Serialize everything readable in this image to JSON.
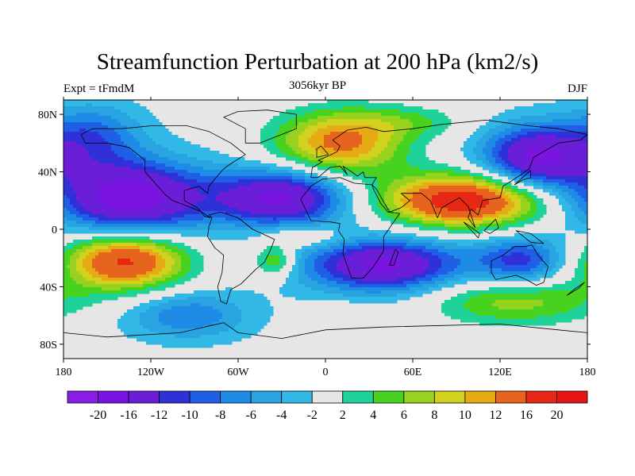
{
  "title": "Streamfunction Perturbation at 200 hPa (km2/s)",
  "subtitle_left": "Expt = tFmdM",
  "subtitle_center": "3056kyr BP",
  "subtitle_right": "DJF",
  "map": {
    "lon_range": [
      -180,
      180
    ],
    "lat_range": [
      -90,
      90
    ],
    "x_ticks": [
      {
        "value": -180,
        "label": "180"
      },
      {
        "value": -120,
        "label": "120W"
      },
      {
        "value": -60,
        "label": "60W"
      },
      {
        "value": 0,
        "label": "0"
      },
      {
        "value": 60,
        "label": "60E"
      },
      {
        "value": 120,
        "label": "120E"
      },
      {
        "value": 180,
        "label": "180"
      }
    ],
    "y_ticks": [
      {
        "value": 80,
        "label": "80N"
      },
      {
        "value": 40,
        "label": "40N"
      },
      {
        "value": 0,
        "label": "0"
      },
      {
        "value": -40,
        "label": "40S"
      },
      {
        "value": -80,
        "label": "80S"
      }
    ],
    "background_color": "#e6e6e6",
    "anomalies": [
      {
        "lon": -135,
        "lat": 22,
        "amp": -18,
        "sx": 38,
        "sy": 18
      },
      {
        "lon": -30,
        "lat": 22,
        "amp": -16,
        "sx": 32,
        "sy": 14
      },
      {
        "lon": 145,
        "lat": 50,
        "amp": -16,
        "sx": 26,
        "sy": 16
      },
      {
        "lon": 40,
        "lat": -25,
        "amp": -16,
        "sx": 38,
        "sy": 13
      },
      {
        "lon": 135,
        "lat": -22,
        "amp": -10,
        "sx": 22,
        "sy": 12
      },
      {
        "lon": 10,
        "lat": 60,
        "amp": 14,
        "sx": 32,
        "sy": 16
      },
      {
        "lon": 95,
        "lat": 20,
        "amp": 20,
        "sx": 40,
        "sy": 13
      },
      {
        "lon": -138,
        "lat": -22,
        "amp": 18,
        "sx": 30,
        "sy": 14
      },
      {
        "lon": -35,
        "lat": -22,
        "amp": 8,
        "sx": 10,
        "sy": 8
      },
      {
        "lon": 130,
        "lat": -50,
        "amp": 8,
        "sx": 42,
        "sy": 12
      },
      {
        "lon": -160,
        "lat": 65,
        "amp": -8,
        "sx": 24,
        "sy": 16
      },
      {
        "lon": -95,
        "lat": -60,
        "amp": -7,
        "sx": 30,
        "sy": 12
      },
      {
        "lon": -15,
        "lat": -5,
        "amp": 5,
        "sx": 22,
        "sy": 6
      },
      {
        "lon": 60,
        "lat": 75,
        "amp": 4,
        "sx": 28,
        "sy": 8
      },
      {
        "lon": 10,
        "lat": -60,
        "amp": 3,
        "sx": 12,
        "sy": 6
      },
      {
        "lon": 0,
        "lat": 0,
        "amp": -1.0,
        "sx": 300,
        "sy": 120
      }
    ]
  },
  "colorbar": {
    "levels": [
      -20,
      -16,
      -12,
      -10,
      -8,
      -6,
      -4,
      -2,
      2,
      4,
      6,
      8,
      10,
      12,
      16,
      20
    ],
    "labels": [
      "-20",
      "-16",
      "-12",
      "-10",
      "-8",
      "-6",
      "-4",
      "-2",
      "2",
      "4",
      "6",
      "8",
      "10",
      "12",
      "16",
      "20"
    ],
    "colors": [
      "#8a1ee6",
      "#7a14e0",
      "#6a1ed8",
      "#3030d8",
      "#1e5fe6",
      "#1e8ce6",
      "#28a4e0",
      "#32b8e6",
      "#e6e6e6",
      "#1ed29a",
      "#46d21e",
      "#96d21e",
      "#d2d21e",
      "#e6aa14",
      "#e6641e",
      "#e62814",
      "#e61414"
    ]
  }
}
